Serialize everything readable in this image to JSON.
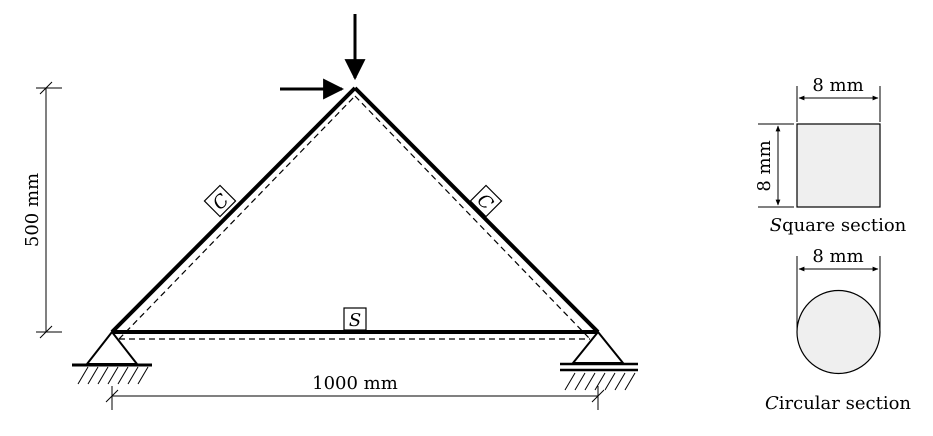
{
  "dimensions": {
    "height_label": "500 mm",
    "span_label": "1000 mm"
  },
  "member_tags": {
    "left_rafter": "C",
    "right_rafter": "C",
    "bottom_chord": "S"
  },
  "sections": {
    "square": {
      "width_label": "8 mm",
      "height_label": "8 mm",
      "caption_initial": "S",
      "caption_rest": "quare section"
    },
    "circular": {
      "diameter_label": "8 mm",
      "caption_initial": "C",
      "caption_rest": "ircular section"
    }
  },
  "colors": {
    "line": "#000000",
    "section_fill": "#efefef"
  }
}
